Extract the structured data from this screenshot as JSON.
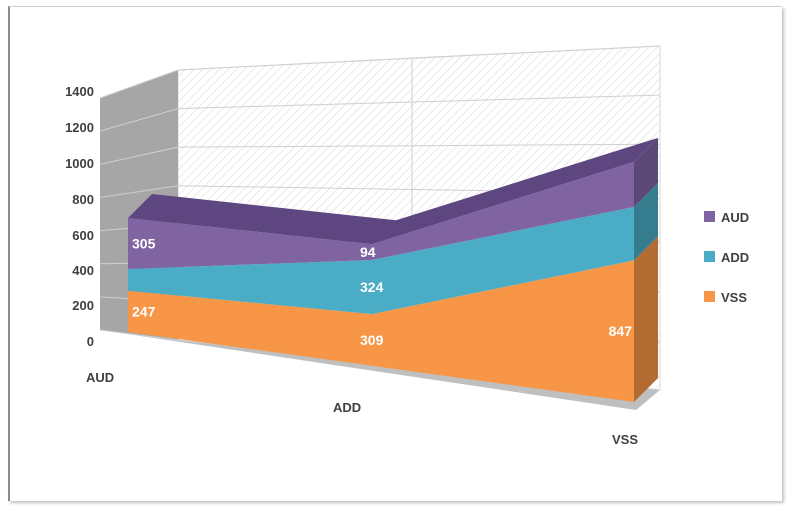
{
  "chart_data": {
    "type": "area",
    "stacked": true,
    "three_d": true,
    "categories": [
      "AUD",
      "ADD",
      "VSS"
    ],
    "series": [
      {
        "name": "VSS",
        "values": [
          247,
          309,
          847
        ],
        "color": "#F79646"
      },
      {
        "name": "ADD",
        "values": [
          130,
          324,
          320
        ],
        "color": "#4BACC6"
      },
      {
        "name": "AUD",
        "values": [
          305,
          94,
          270
        ],
        "color": "#8064A2"
      }
    ],
    "data_labels": [
      {
        "series": "AUD",
        "category": "AUD",
        "text": "305"
      },
      {
        "series": "AUD",
        "category": "ADD",
        "text": "94"
      },
      {
        "series": "ADD",
        "category": "ADD",
        "text": "324"
      },
      {
        "series": "VSS",
        "category": "AUD",
        "text": "247"
      },
      {
        "series": "VSS",
        "category": "ADD",
        "text": "309"
      },
      {
        "series": "VSS",
        "category": "VSS",
        "text": "847"
      }
    ],
    "y_ticks": [
      "0",
      "200",
      "400",
      "600",
      "800",
      "1000",
      "1200",
      "1400"
    ],
    "ylim": [
      0,
      1400
    ],
    "grid": true,
    "legend": {
      "position": "right",
      "entries": [
        "AUD",
        "ADD",
        "VSS"
      ]
    }
  }
}
